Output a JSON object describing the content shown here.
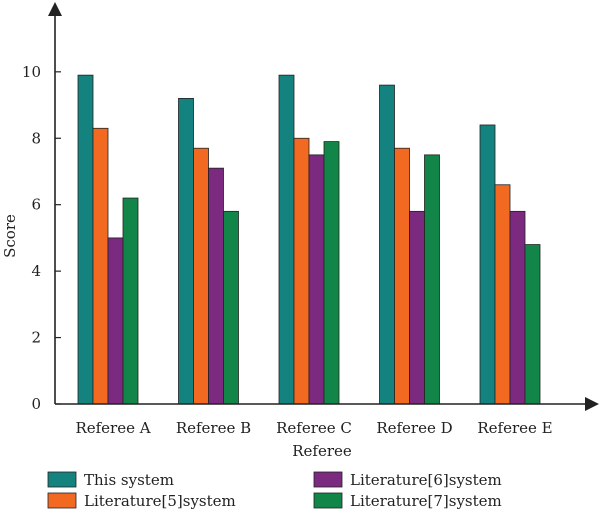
{
  "chart_data": {
    "type": "bar",
    "categories": [
      "Referee A",
      "Referee B",
      "Referee C",
      "Referee D",
      "Referee E"
    ],
    "series": [
      {
        "name": "This system",
        "color": "#14827e",
        "values": [
          9.9,
          9.2,
          9.9,
          9.6,
          8.4
        ]
      },
      {
        "name": "Literature[5]system",
        "color": "#f26a21",
        "values": [
          8.3,
          7.7,
          8.0,
          7.7,
          6.6
        ]
      },
      {
        "name": "Literature[6]system",
        "color": "#7b2a7f",
        "values": [
          5.0,
          7.1,
          7.5,
          5.8,
          5.8
        ]
      },
      {
        "name": "Literature[7]system",
        "color": "#128548",
        "values": [
          6.2,
          5.8,
          7.9,
          7.5,
          4.8
        ]
      }
    ],
    "xlabel": "Referee",
    "ylabel": "Score",
    "yticks": [
      0,
      2,
      4,
      6,
      8,
      10
    ],
    "ylim": [
      0,
      11.5
    ],
    "grid": false,
    "legend_position": "bottom"
  }
}
